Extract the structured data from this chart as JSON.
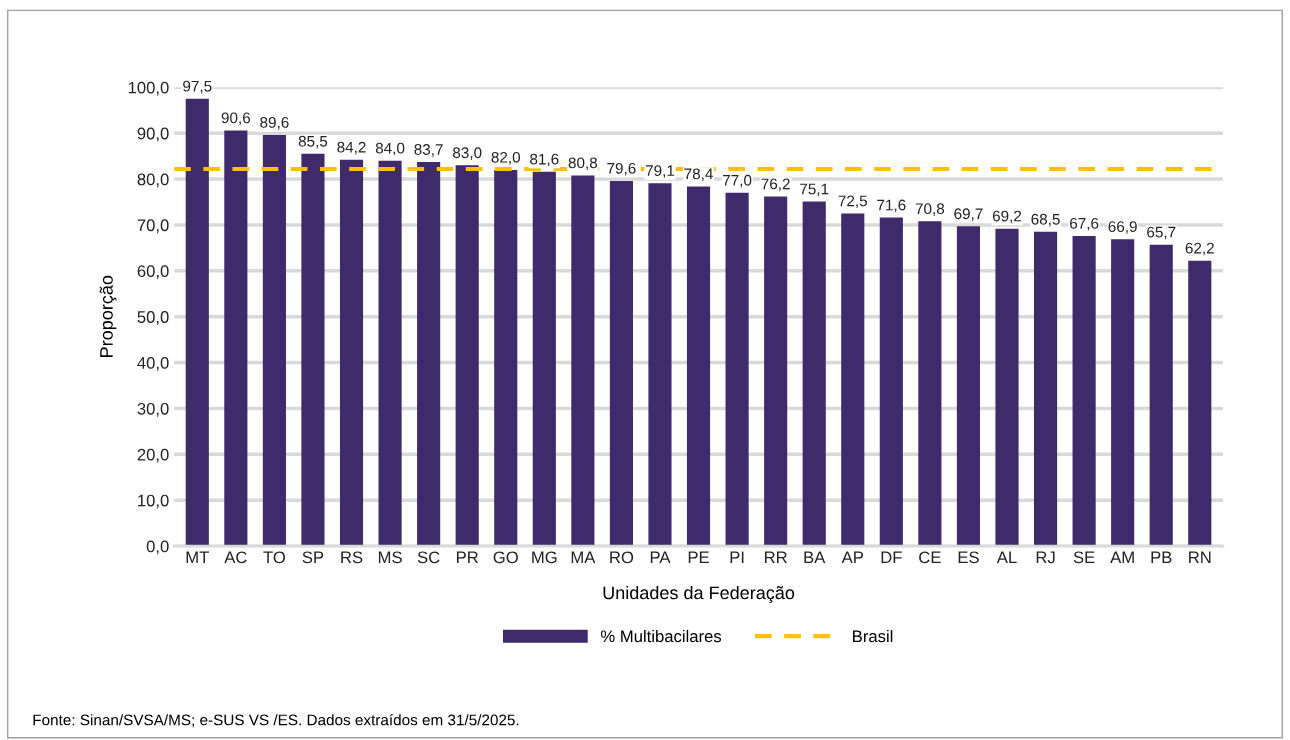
{
  "chart_data": {
    "type": "bar",
    "xlabel": "Unidades da Federação",
    "ylabel": "Proporção",
    "categories": [
      "MT",
      "AC",
      "TO",
      "SP",
      "RS",
      "MS",
      "SC",
      "PR",
      "GO",
      "MG",
      "MA",
      "RO",
      "PA",
      "PE",
      "PI",
      "RR",
      "BA",
      "AP",
      "DF",
      "CE",
      "ES",
      "AL",
      "RJ",
      "SE",
      "AM",
      "PB",
      "RN"
    ],
    "series": [
      {
        "name": "% Multibacilares",
        "color": "#3f2a6b",
        "values": [
          97.5,
          90.6,
          89.6,
          85.5,
          84.2,
          84.0,
          83.7,
          83.0,
          82.0,
          81.6,
          80.8,
          79.6,
          79.1,
          78.4,
          77.0,
          76.2,
          75.1,
          72.5,
          71.6,
          70.8,
          69.7,
          69.2,
          68.5,
          67.6,
          66.9,
          65.7,
          62.2
        ],
        "value_labels": [
          "97,5",
          "90,6",
          "89,6",
          "85,5",
          "84,2",
          "84,0",
          "83,7",
          "83,0",
          "82,0",
          "81,6",
          "80,8",
          "79,6",
          "79,1",
          "78,4",
          "77,0",
          "76,2",
          "75,1",
          "72,5",
          "71,6",
          "70,8",
          "69,7",
          "69,2",
          "68,5",
          "67,6",
          "66,9",
          "65,7",
          "62,2"
        ]
      }
    ],
    "ref_lines": [
      {
        "axis": "y",
        "value": 82.2,
        "label": "Brasil",
        "color": "#ffc000",
        "line_style": "dashed"
      }
    ],
    "ylim": [
      0,
      100
    ],
    "yticks": [
      {
        "value": 0,
        "label": "0,0"
      },
      {
        "value": 10,
        "label": "10,0"
      },
      {
        "value": 20,
        "label": "20,0"
      },
      {
        "value": 30,
        "label": "30,0"
      },
      {
        "value": 40,
        "label": "40,0"
      },
      {
        "value": 50,
        "label": "50,0"
      },
      {
        "value": 60,
        "label": "60,0"
      },
      {
        "value": 70,
        "label": "70,0"
      },
      {
        "value": 80,
        "label": "80,0"
      },
      {
        "value": 90,
        "label": "90,0"
      },
      {
        "value": 100,
        "label": "100,0"
      }
    ],
    "grid": "y",
    "legend": "bottom",
    "annotations": [
      "Fonte: Sinan/SVSA/MS; e-SUS VS /ES. Dados extraídos em 31/5/2025."
    ]
  }
}
